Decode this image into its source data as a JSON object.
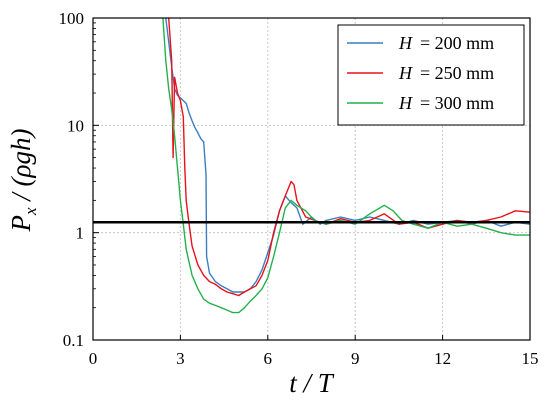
{
  "chart_data": {
    "type": "line",
    "title": "",
    "xlabel": "t / T",
    "ylabel": "P_x / (ρgh)",
    "ylabel_parts": {
      "main": "P",
      "sub": "x",
      "rest": " / (ρgh)"
    },
    "xlim": [
      0,
      15
    ],
    "ylim": [
      0.1,
      100
    ],
    "yscale": "log",
    "grid": true,
    "legend_position": "top-right",
    "x_ticks": [
      0,
      3,
      6,
      9,
      12,
      15
    ],
    "x_tick_labels": [
      "0",
      "3",
      "6",
      "9",
      "12",
      "15"
    ],
    "y_ticks": [
      0.1,
      1,
      10,
      100
    ],
    "y_tick_labels": [
      "0.1",
      "1",
      "10",
      "100"
    ],
    "reference_line": {
      "y": 1.25,
      "color": "#000000"
    },
    "series": [
      {
        "name": "H = 200 mm",
        "legend_var": "H",
        "legend_value": "= 200 mm",
        "color": "#3a7fc1",
        "points": [
          [
            2.5,
            100
          ],
          [
            2.6,
            60
          ],
          [
            2.7,
            35
          ],
          [
            2.8,
            22
          ],
          [
            2.9,
            19
          ],
          [
            3.0,
            18
          ],
          [
            3.1,
            17
          ],
          [
            3.2,
            16
          ],
          [
            3.3,
            13
          ],
          [
            3.4,
            11
          ],
          [
            3.5,
            9.5
          ],
          [
            3.6,
            8.5
          ],
          [
            3.7,
            7.5
          ],
          [
            3.8,
            7.0
          ],
          [
            3.88,
            3.5
          ],
          [
            3.9,
            0.6
          ],
          [
            4.0,
            0.42
          ],
          [
            4.2,
            0.35
          ],
          [
            4.4,
            0.32
          ],
          [
            4.6,
            0.3
          ],
          [
            4.8,
            0.28
          ],
          [
            5.0,
            0.28
          ],
          [
            5.2,
            0.28
          ],
          [
            5.4,
            0.3
          ],
          [
            5.6,
            0.35
          ],
          [
            5.8,
            0.45
          ],
          [
            6.0,
            0.65
          ],
          [
            6.2,
            0.95
          ],
          [
            6.4,
            1.6
          ],
          [
            6.6,
            2.2
          ],
          [
            6.8,
            1.9
          ],
          [
            7.0,
            1.7
          ],
          [
            7.2,
            1.2
          ],
          [
            7.5,
            1.4
          ],
          [
            7.8,
            1.2
          ],
          [
            8.0,
            1.3
          ],
          [
            8.5,
            1.4
          ],
          [
            9.0,
            1.3
          ],
          [
            9.5,
            1.4
          ],
          [
            10.0,
            1.3
          ],
          [
            10.5,
            1.2
          ],
          [
            11.0,
            1.3
          ],
          [
            11.5,
            1.2
          ],
          [
            12.0,
            1.25
          ],
          [
            12.5,
            1.3
          ],
          [
            13.0,
            1.2
          ],
          [
            13.5,
            1.3
          ],
          [
            14.0,
            1.15
          ],
          [
            14.5,
            1.25
          ],
          [
            15.0,
            1.2
          ]
        ]
      },
      {
        "name": "H = 250 mm",
        "legend_var": "H",
        "legend_value": "= 250 mm",
        "color": "#e8121b",
        "points": [
          [
            2.6,
            100
          ],
          [
            2.7,
            40
          ],
          [
            2.75,
            5
          ],
          [
            2.8,
            28
          ],
          [
            2.9,
            20
          ],
          [
            3.0,
            17
          ],
          [
            3.1,
            12
          ],
          [
            3.15,
            4
          ],
          [
            3.2,
            2.0
          ],
          [
            3.3,
            1.2
          ],
          [
            3.4,
            0.75
          ],
          [
            3.6,
            0.5
          ],
          [
            3.8,
            0.4
          ],
          [
            4.0,
            0.35
          ],
          [
            4.2,
            0.33
          ],
          [
            4.4,
            0.3
          ],
          [
            4.6,
            0.28
          ],
          [
            4.8,
            0.27
          ],
          [
            5.0,
            0.26
          ],
          [
            5.2,
            0.28
          ],
          [
            5.4,
            0.3
          ],
          [
            5.6,
            0.32
          ],
          [
            5.8,
            0.4
          ],
          [
            6.0,
            0.55
          ],
          [
            6.2,
            1.0
          ],
          [
            6.4,
            1.6
          ],
          [
            6.6,
            2.2
          ],
          [
            6.8,
            3.0
          ],
          [
            6.9,
            2.8
          ],
          [
            7.0,
            2.0
          ],
          [
            7.3,
            1.4
          ],
          [
            7.6,
            1.3
          ],
          [
            8.0,
            1.2
          ],
          [
            8.5,
            1.35
          ],
          [
            9.0,
            1.25
          ],
          [
            9.5,
            1.3
          ],
          [
            10.0,
            1.5
          ],
          [
            10.5,
            1.2
          ],
          [
            11.0,
            1.25
          ],
          [
            11.5,
            1.1
          ],
          [
            12.0,
            1.2
          ],
          [
            12.5,
            1.3
          ],
          [
            13.0,
            1.25
          ],
          [
            13.5,
            1.3
          ],
          [
            14.0,
            1.4
          ],
          [
            14.5,
            1.6
          ],
          [
            15.0,
            1.55
          ]
        ]
      },
      {
        "name": "H = 300 mm",
        "legend_var": "H",
        "legend_value": "= 300 mm",
        "color": "#22b14c",
        "points": [
          [
            2.4,
            100
          ],
          [
            2.5,
            40
          ],
          [
            2.6,
            22
          ],
          [
            2.7,
            14
          ],
          [
            2.8,
            8
          ],
          [
            2.9,
            4
          ],
          [
            3.0,
            2.0
          ],
          [
            3.1,
            1.2
          ],
          [
            3.2,
            0.7
          ],
          [
            3.4,
            0.4
          ],
          [
            3.6,
            0.3
          ],
          [
            3.8,
            0.24
          ],
          [
            4.0,
            0.22
          ],
          [
            4.2,
            0.21
          ],
          [
            4.4,
            0.2
          ],
          [
            4.6,
            0.19
          ],
          [
            4.8,
            0.18
          ],
          [
            5.0,
            0.18
          ],
          [
            5.2,
            0.2
          ],
          [
            5.4,
            0.23
          ],
          [
            5.6,
            0.26
          ],
          [
            5.8,
            0.3
          ],
          [
            6.0,
            0.38
          ],
          [
            6.2,
            0.6
          ],
          [
            6.4,
            1.0
          ],
          [
            6.6,
            1.7
          ],
          [
            6.8,
            2.0
          ],
          [
            7.0,
            1.8
          ],
          [
            7.3,
            1.6
          ],
          [
            7.6,
            1.3
          ],
          [
            8.0,
            1.2
          ],
          [
            8.5,
            1.3
          ],
          [
            9.0,
            1.2
          ],
          [
            9.5,
            1.5
          ],
          [
            10.0,
            1.8
          ],
          [
            10.3,
            1.6
          ],
          [
            10.6,
            1.3
          ],
          [
            11.0,
            1.2
          ],
          [
            11.5,
            1.1
          ],
          [
            12.0,
            1.25
          ],
          [
            12.5,
            1.15
          ],
          [
            13.0,
            1.2
          ],
          [
            13.5,
            1.1
          ],
          [
            14.0,
            1.0
          ],
          [
            14.5,
            0.95
          ],
          [
            15.0,
            0.95
          ]
        ]
      }
    ]
  }
}
